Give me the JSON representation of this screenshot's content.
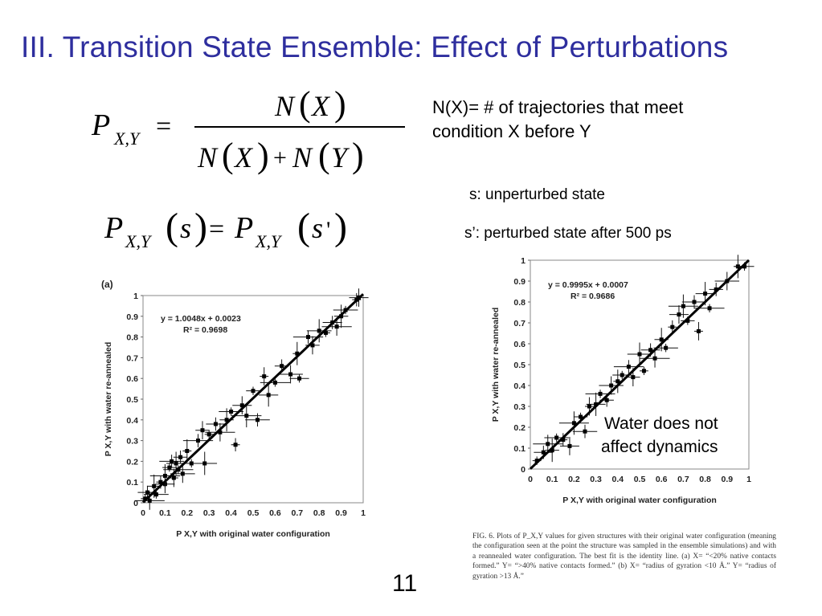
{
  "slide": {
    "title": "III. Transition State Ensemble: Effect of Perturbations",
    "page_number": "11"
  },
  "equations": {
    "eq1": "P_{X,Y} = N(X) / (N(X) + N(Y))",
    "eq2": "P_{X,Y}(s) = P_{X,Y}(s')"
  },
  "notes": {
    "nx_line1": "N(X)= # of trajectories that meet",
    "nx_line2": "condition X before Y",
    "s_def": "s: unperturbed state",
    "sp_def": "s’: perturbed state after 500 ps",
    "callout_line1": "Water does not",
    "callout_line2": "affect dynamics"
  },
  "caption": "FIG. 6. Plots of P_X,Y values for given structures with their original water configuration (meaning the configuration seen at the point the structure was sampled in the ensemble simulations) and with a reannealed water configuration. The best fit is the identity line. (a) X= “<20% native contacts formed.” Y= “>40% native contacts formed.” (b) X= “radius of gyration <10 Å.” Y= “radius of gyration >13 Å.”",
  "chart_data": [
    {
      "type": "scatter",
      "panel_label": "(a)",
      "xlabel": "P X,Y  with original water configuration",
      "ylabel": "P X,Y  with water re-annealed",
      "xlim": [
        0,
        1
      ],
      "ylim": [
        0,
        1
      ],
      "ticks": [
        "0",
        "0.1",
        "0.2",
        "0.3",
        "0.4",
        "0.5",
        "0.6",
        "0.7",
        "0.8",
        "0.9",
        "1"
      ],
      "fit_equation": "y = 1.0048x + 0.0023",
      "r_squared": "R² = 0.9698",
      "fit": {
        "slope": 1.0048,
        "intercept": 0.0023
      },
      "points": [
        [
          0.01,
          0.02
        ],
        [
          0.02,
          0.05
        ],
        [
          0.03,
          0.01
        ],
        [
          0.05,
          0.08
        ],
        [
          0.06,
          0.04
        ],
        [
          0.08,
          0.1
        ],
        [
          0.1,
          0.09
        ],
        [
          0.1,
          0.13
        ],
        [
          0.12,
          0.17
        ],
        [
          0.13,
          0.2
        ],
        [
          0.14,
          0.12
        ],
        [
          0.15,
          0.19
        ],
        [
          0.16,
          0.16
        ],
        [
          0.17,
          0.22
        ],
        [
          0.18,
          0.14
        ],
        [
          0.2,
          0.25
        ],
        [
          0.22,
          0.19
        ],
        [
          0.25,
          0.3
        ],
        [
          0.27,
          0.35
        ],
        [
          0.28,
          0.19
        ],
        [
          0.3,
          0.33
        ],
        [
          0.33,
          0.38
        ],
        [
          0.35,
          0.34
        ],
        [
          0.38,
          0.4
        ],
        [
          0.4,
          0.44
        ],
        [
          0.42,
          0.28
        ],
        [
          0.45,
          0.47
        ],
        [
          0.47,
          0.42
        ],
        [
          0.5,
          0.54
        ],
        [
          0.52,
          0.4
        ],
        [
          0.55,
          0.61
        ],
        [
          0.57,
          0.52
        ],
        [
          0.6,
          0.58
        ],
        [
          0.63,
          0.66
        ],
        [
          0.67,
          0.62
        ],
        [
          0.7,
          0.72
        ],
        [
          0.71,
          0.6
        ],
        [
          0.75,
          0.8
        ],
        [
          0.77,
          0.76
        ],
        [
          0.8,
          0.83
        ],
        [
          0.83,
          0.82
        ],
        [
          0.86,
          0.87
        ],
        [
          0.88,
          0.85
        ],
        [
          0.9,
          0.9
        ],
        [
          0.92,
          0.93
        ],
        [
          0.97,
          0.98
        ],
        [
          0.98,
          0.99
        ]
      ]
    },
    {
      "type": "scatter",
      "panel_label": "",
      "xlabel": "P X,Y  with original water configuration",
      "ylabel": "P X,Y  with water re-annealed",
      "xlim": [
        0,
        1
      ],
      "ylim": [
        0,
        1
      ],
      "ticks": [
        "0",
        "0.1",
        "0.2",
        "0.3",
        "0.4",
        "0.5",
        "0.6",
        "0.7",
        "0.8",
        "0.9",
        "1"
      ],
      "fit_equation": "y = 0.9995x + 0.0007",
      "r_squared": "R² = 0.9686",
      "fit": {
        "slope": 0.9995,
        "intercept": 0.0007
      },
      "points": [
        [
          0.03,
          0.04
        ],
        [
          0.06,
          0.08
        ],
        [
          0.08,
          0.12
        ],
        [
          0.1,
          0.09
        ],
        [
          0.12,
          0.15
        ],
        [
          0.15,
          0.14
        ],
        [
          0.18,
          0.11
        ],
        [
          0.2,
          0.22
        ],
        [
          0.23,
          0.25
        ],
        [
          0.25,
          0.18
        ],
        [
          0.27,
          0.3
        ],
        [
          0.3,
          0.31
        ],
        [
          0.32,
          0.36
        ],
        [
          0.35,
          0.33
        ],
        [
          0.37,
          0.4
        ],
        [
          0.4,
          0.42
        ],
        [
          0.42,
          0.45
        ],
        [
          0.45,
          0.49
        ],
        [
          0.47,
          0.44
        ],
        [
          0.5,
          0.55
        ],
        [
          0.52,
          0.47
        ],
        [
          0.55,
          0.57
        ],
        [
          0.57,
          0.53
        ],
        [
          0.6,
          0.62
        ],
        [
          0.62,
          0.58
        ],
        [
          0.65,
          0.68
        ],
        [
          0.68,
          0.74
        ],
        [
          0.7,
          0.78
        ],
        [
          0.72,
          0.71
        ],
        [
          0.75,
          0.8
        ],
        [
          0.77,
          0.66
        ],
        [
          0.8,
          0.84
        ],
        [
          0.82,
          0.77
        ],
        [
          0.85,
          0.86
        ],
        [
          0.9,
          0.9
        ],
        [
          0.95,
          0.97
        ],
        [
          0.98,
          0.97
        ]
      ]
    }
  ]
}
